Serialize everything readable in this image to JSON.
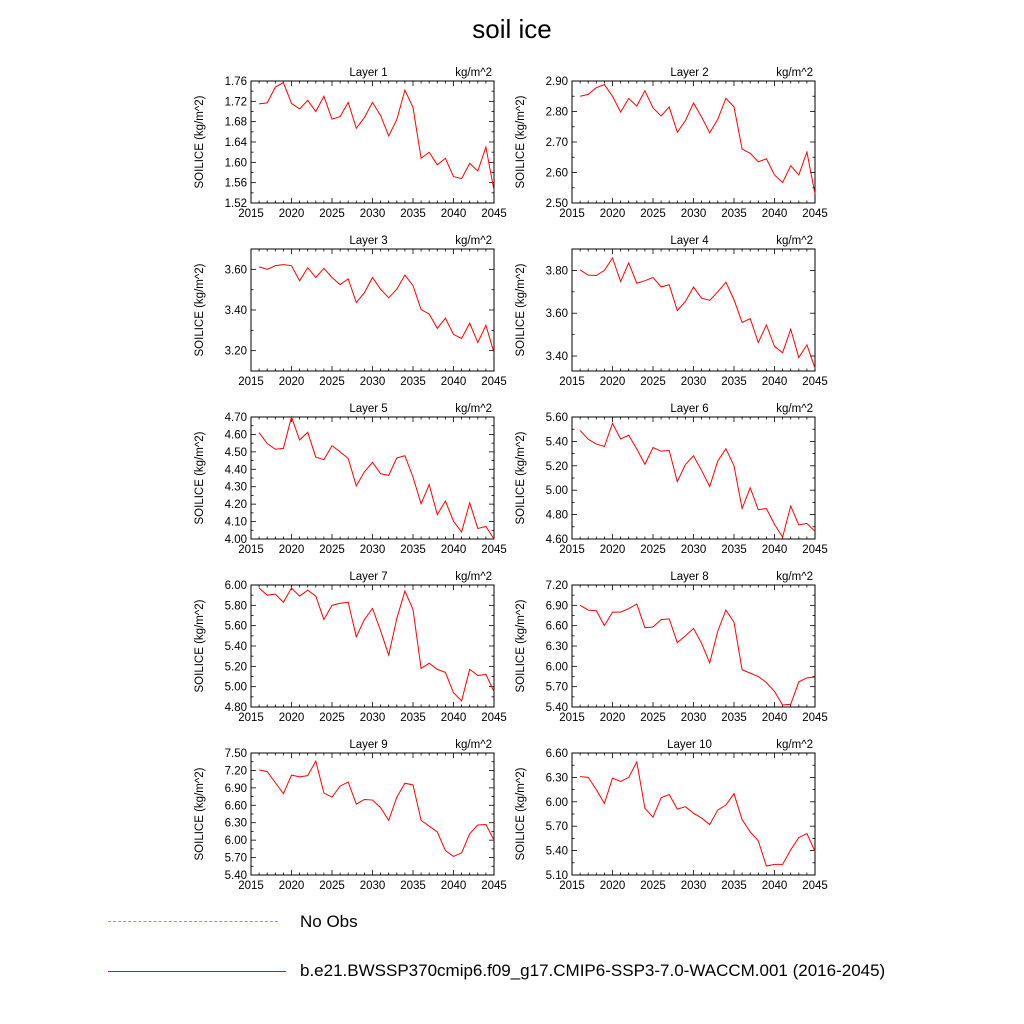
{
  "title": "soil ice",
  "colors": {
    "model": "#ff0000",
    "obs": "#8c8cff",
    "axis": "#000000"
  },
  "legend": {
    "obs_label": "No Obs",
    "model_label": "b.e21.BWSSP370cmip6.f09_g17.CMIP6-SSP3-7.0-WACCM.001 (2016-2045)"
  },
  "chart_data": [
    {
      "type": "line",
      "title": "Layer 1",
      "units": "kg/m^2",
      "ylabel": "SOILICE  (kg/m^2)",
      "xlim": [
        2015,
        2045
      ],
      "xticks": [
        "2015",
        "2020",
        "2025",
        "2030",
        "2035",
        "2040",
        "2045"
      ],
      "ylim": [
        1.52,
        1.76
      ],
      "yticks": [
        "1.52",
        "1.56",
        "1.60",
        "1.64",
        "1.68",
        "1.72",
        "1.76"
      ],
      "x_start": 2016,
      "series": [
        {
          "values": [
            1.715,
            1.717,
            1.748,
            1.757,
            1.716,
            1.705,
            1.722,
            1.7,
            1.73,
            1.685,
            1.69,
            1.718,
            1.667,
            1.688,
            1.718,
            1.692,
            1.652,
            1.684,
            1.742,
            1.708,
            1.608,
            1.62,
            1.595,
            1.608,
            1.572,
            1.568,
            1.598,
            1.583,
            1.63,
            1.545
          ]
        }
      ]
    },
    {
      "type": "line",
      "title": "Layer 2",
      "units": "kg/m^2",
      "ylabel": "SOILICE  (kg/m^2)",
      "xlim": [
        2015,
        2045
      ],
      "xticks": [
        "2015",
        "2020",
        "2025",
        "2030",
        "2035",
        "2040",
        "2045"
      ],
      "ylim": [
        2.5,
        2.9
      ],
      "yticks": [
        "2.50",
        "2.60",
        "2.70",
        "2.80",
        "2.90"
      ],
      "x_start": 2016,
      "series": [
        {
          "values": [
            2.85,
            2.856,
            2.878,
            2.888,
            2.85,
            2.798,
            2.843,
            2.818,
            2.868,
            2.812,
            2.785,
            2.815,
            2.732,
            2.77,
            2.828,
            2.782,
            2.73,
            2.775,
            2.843,
            2.815,
            2.677,
            2.663,
            2.635,
            2.645,
            2.592,
            2.567,
            2.622,
            2.592,
            2.667,
            2.53
          ]
        }
      ]
    },
    {
      "type": "line",
      "title": "Layer 3",
      "units": "kg/m^2",
      "ylabel": "SOILICE  (kg/m^2)",
      "xlim": [
        2015,
        2045
      ],
      "xticks": [
        "2015",
        "2020",
        "2025",
        "2030",
        "2035",
        "2040",
        "2045"
      ],
      "ylim": [
        3.1,
        3.7
      ],
      "yticks": [
        "3.20",
        "3.40",
        "3.60"
      ],
      "x_start": 2016,
      "series": [
        {
          "values": [
            3.612,
            3.6,
            3.618,
            3.623,
            3.618,
            3.543,
            3.608,
            3.56,
            3.605,
            3.56,
            3.525,
            3.553,
            3.437,
            3.485,
            3.56,
            3.502,
            3.46,
            3.502,
            3.572,
            3.52,
            3.402,
            3.38,
            3.31,
            3.36,
            3.28,
            3.26,
            3.335,
            3.24,
            3.325,
            3.19
          ]
        }
      ]
    },
    {
      "type": "line",
      "title": "Layer 4",
      "units": "kg/m^2",
      "ylabel": "SOILICE  (kg/m^2)",
      "xlim": [
        2015,
        2045
      ],
      "xticks": [
        "2015",
        "2020",
        "2025",
        "2030",
        "2035",
        "2040",
        "2045"
      ],
      "ylim": [
        3.33,
        3.9
      ],
      "yticks": [
        "3.40",
        "3.60",
        "3.80"
      ],
      "x_start": 2016,
      "series": [
        {
          "values": [
            3.802,
            3.778,
            3.776,
            3.8,
            3.858,
            3.748,
            3.835,
            3.74,
            3.752,
            3.767,
            3.723,
            3.733,
            3.612,
            3.655,
            3.722,
            3.67,
            3.66,
            3.7,
            3.745,
            3.663,
            3.557,
            3.575,
            3.463,
            3.545,
            3.445,
            3.415,
            3.525,
            3.393,
            3.452,
            3.343
          ]
        }
      ]
    },
    {
      "type": "line",
      "title": "Layer 5",
      "units": "kg/m^2",
      "ylabel": "SOILICE  (kg/m^2)",
      "xlim": [
        2015,
        2045
      ],
      "xticks": [
        "2015",
        "2020",
        "2025",
        "2030",
        "2035",
        "2040",
        "2045"
      ],
      "ylim": [
        4.0,
        4.7
      ],
      "yticks": [
        "4.00",
        "4.10",
        "4.20",
        "4.30",
        "4.40",
        "4.50",
        "4.60",
        "4.70"
      ],
      "x_start": 2016,
      "series": [
        {
          "values": [
            4.61,
            4.548,
            4.515,
            4.52,
            4.7,
            4.568,
            4.612,
            4.47,
            4.455,
            4.535,
            4.5,
            4.462,
            4.305,
            4.385,
            4.44,
            4.375,
            4.365,
            4.465,
            4.478,
            4.355,
            4.202,
            4.312,
            4.14,
            4.218,
            4.102,
            4.04,
            4.208,
            4.06,
            4.072,
            4.0
          ]
        }
      ]
    },
    {
      "type": "line",
      "title": "Layer 6",
      "units": "kg/m^2",
      "ylabel": "SOILICE  (kg/m^2)",
      "xlim": [
        2015,
        2045
      ],
      "xticks": [
        "2015",
        "2020",
        "2025",
        "2030",
        "2035",
        "2040",
        "2045"
      ],
      "ylim": [
        4.6,
        5.6
      ],
      "yticks": [
        "4.60",
        "4.80",
        "5.00",
        "5.20",
        "5.40",
        "5.60"
      ],
      "x_start": 2016,
      "series": [
        {
          "values": [
            5.49,
            5.418,
            5.378,
            5.358,
            5.548,
            5.42,
            5.45,
            5.338,
            5.212,
            5.35,
            5.32,
            5.325,
            5.07,
            5.21,
            5.282,
            5.162,
            5.03,
            5.24,
            5.34,
            5.2,
            4.85,
            5.02,
            4.84,
            4.85,
            4.72,
            4.615,
            4.87,
            4.715,
            4.728,
            4.662
          ]
        }
      ]
    },
    {
      "type": "line",
      "title": "Layer 7",
      "units": "kg/m^2",
      "ylabel": "SOILICE  (kg/m^2)",
      "xlim": [
        2015,
        2045
      ],
      "xticks": [
        "2015",
        "2020",
        "2025",
        "2030",
        "2035",
        "2040",
        "2045"
      ],
      "ylim": [
        4.8,
        6.0
      ],
      "yticks": [
        "4.80",
        "5.00",
        "5.20",
        "5.40",
        "5.60",
        "5.80",
        "6.00"
      ],
      "x_start": 2016,
      "series": [
        {
          "values": [
            5.97,
            5.9,
            5.91,
            5.83,
            5.97,
            5.89,
            5.95,
            5.89,
            5.66,
            5.8,
            5.82,
            5.83,
            5.49,
            5.66,
            5.77,
            5.55,
            5.31,
            5.67,
            5.94,
            5.76,
            5.18,
            5.23,
            5.17,
            5.14,
            4.94,
            4.86,
            5.17,
            5.11,
            5.12,
            4.95
          ]
        }
      ]
    },
    {
      "type": "line",
      "title": "Layer 8",
      "units": "kg/m^2",
      "ylabel": "SOILICE  (kg/m^2)",
      "xlim": [
        2015,
        2045
      ],
      "xticks": [
        "2015",
        "2020",
        "2025",
        "2030",
        "2035",
        "2040",
        "2045"
      ],
      "ylim": [
        5.4,
        7.2
      ],
      "yticks": [
        "5.40",
        "5.70",
        "6.00",
        "6.30",
        "6.60",
        "6.90",
        "7.20"
      ],
      "x_start": 2016,
      "series": [
        {
          "values": [
            6.9,
            6.83,
            6.82,
            6.6,
            6.8,
            6.8,
            6.85,
            6.92,
            6.57,
            6.58,
            6.69,
            6.7,
            6.35,
            6.45,
            6.56,
            6.34,
            6.05,
            6.52,
            6.83,
            6.65,
            5.95,
            5.9,
            5.85,
            5.76,
            5.63,
            5.43,
            5.44,
            5.77,
            5.83,
            5.84
          ]
        }
      ]
    },
    {
      "type": "line",
      "title": "Layer 9",
      "units": "kg/m^2",
      "ylabel": "SOILICE  (kg/m^2)",
      "xlim": [
        2015,
        2045
      ],
      "xticks": [
        "2015",
        "2020",
        "2025",
        "2030",
        "2035",
        "2040",
        "2045"
      ],
      "ylim": [
        5.4,
        7.5
      ],
      "yticks": [
        "5.40",
        "5.70",
        "6.00",
        "6.30",
        "6.60",
        "6.90",
        "7.20",
        "7.50"
      ],
      "x_start": 2016,
      "series": [
        {
          "values": [
            7.21,
            7.18,
            6.99,
            6.8,
            7.12,
            7.09,
            7.11,
            7.36,
            6.81,
            6.74,
            6.93,
            7.0,
            6.62,
            6.7,
            6.69,
            6.56,
            6.34,
            6.74,
            6.98,
            6.95,
            6.34,
            6.24,
            6.14,
            5.82,
            5.72,
            5.78,
            6.11,
            6.26,
            6.27,
            6.0
          ]
        }
      ]
    },
    {
      "type": "line",
      "title": "Layer 10",
      "units": "kg/m^2",
      "ylabel": "SOILICE  (kg/m^2)",
      "xlim": [
        2015,
        2045
      ],
      "xticks": [
        "2015",
        "2020",
        "2025",
        "2030",
        "2035",
        "2040",
        "2045"
      ],
      "ylim": [
        5.1,
        6.6
      ],
      "yticks": [
        "5.10",
        "5.40",
        "5.70",
        "6.00",
        "6.30",
        "6.60"
      ],
      "x_start": 2016,
      "series": [
        {
          "values": [
            6.31,
            6.3,
            6.15,
            5.98,
            6.29,
            6.25,
            6.3,
            6.49,
            5.92,
            5.81,
            6.05,
            6.09,
            5.91,
            5.94,
            5.86,
            5.8,
            5.72,
            5.9,
            5.96,
            6.1,
            5.78,
            5.63,
            5.52,
            5.21,
            5.23,
            5.23,
            5.41,
            5.56,
            5.61,
            5.39
          ]
        }
      ]
    }
  ]
}
